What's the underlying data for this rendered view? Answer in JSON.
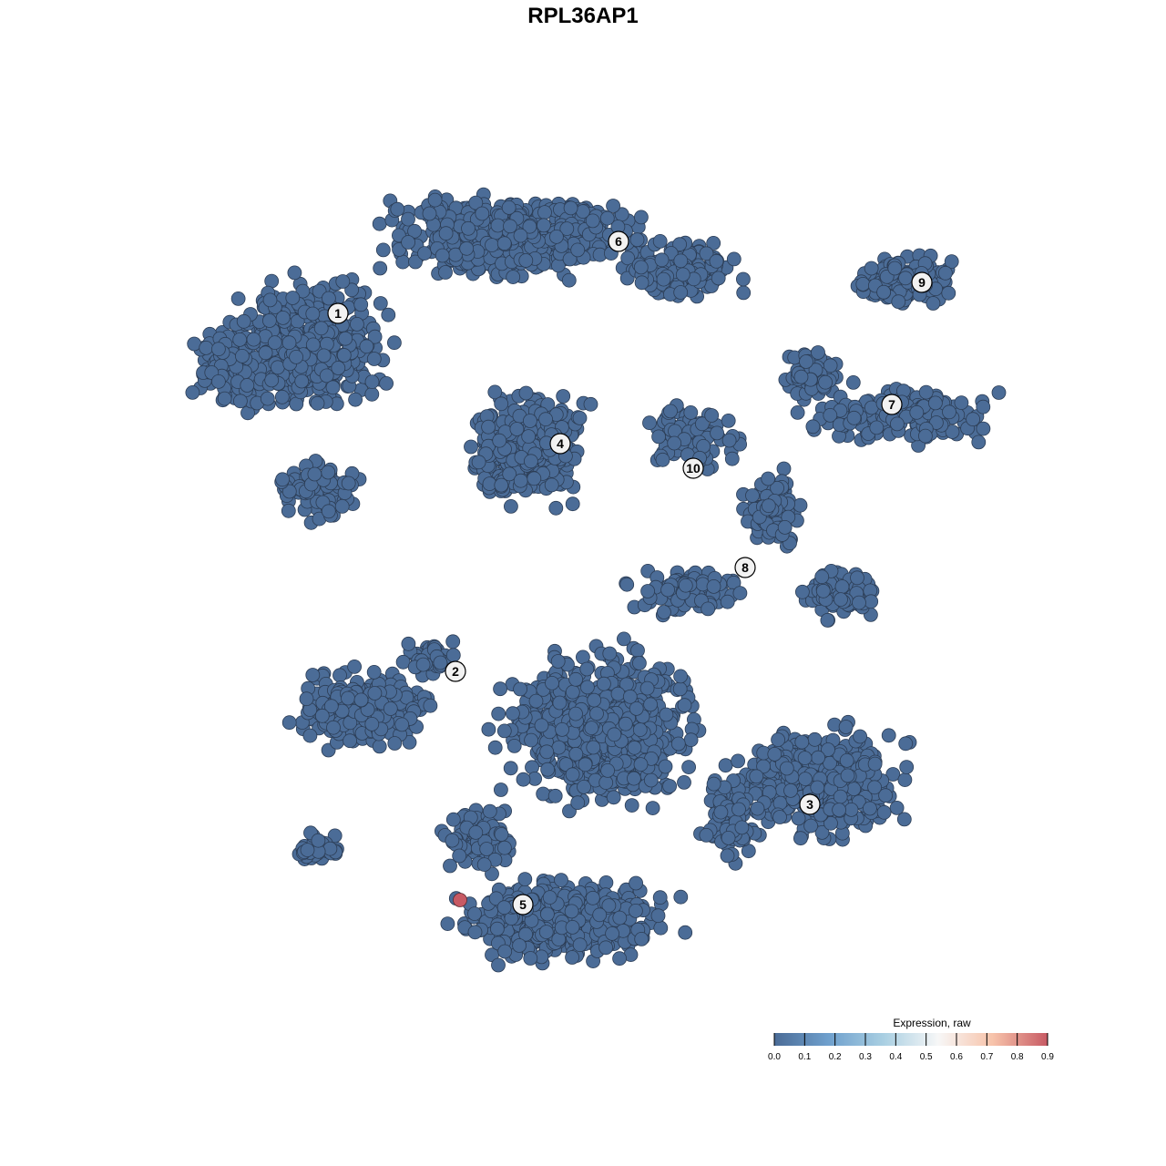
{
  "chart_data": {
    "type": "scatter",
    "title": "RPL36AP1",
    "xlabel": "",
    "ylabel": "",
    "grid": false,
    "point_color_default_value": 0.0,
    "highlighted_cells": [
      {
        "cluster": "5",
        "value": 0.9
      }
    ],
    "cluster_labels": [
      "1",
      "2",
      "3",
      "4",
      "5",
      "6",
      "7",
      "8",
      "9",
      "10"
    ],
    "colorbar": {
      "title": "Expression, raw",
      "range": [
        0.0,
        0.9
      ],
      "ticks": [
        "0.0",
        "0.1",
        "0.2",
        "0.3",
        "0.4",
        "0.5",
        "0.6",
        "0.7",
        "0.8",
        "0.9"
      ],
      "colors": [
        "#4b6c97",
        "#6fa0cd",
        "#a9cfe2",
        "#f7f7f7",
        "#f7c3aa",
        "#c75a64"
      ],
      "placement": "bottom-right"
    }
  }
}
